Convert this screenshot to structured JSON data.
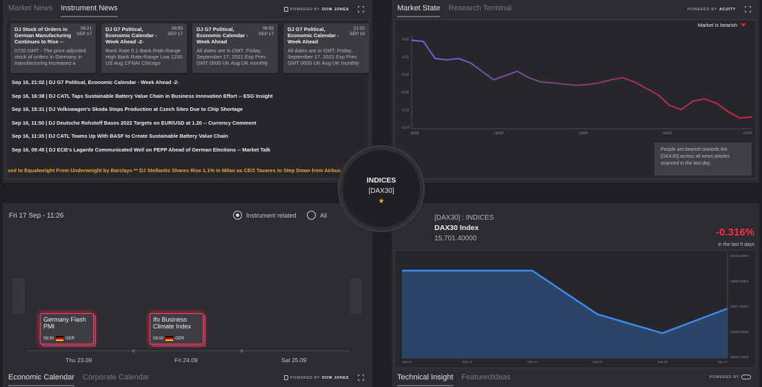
{
  "news_panel": {
    "tabs": [
      "Market News",
      "Instrument News"
    ],
    "active_tab": 1,
    "powered_by": "POWERED BY",
    "provider": "DOW JONES",
    "cards": [
      {
        "title": "DJ Stock of Orders in German Manufacturing Continues to Rise --",
        "time": "08:21",
        "date": "SEP 17",
        "body": "0720 GMT - The price adjusted stock of orders in Germany in manufacturing increased a"
      },
      {
        "title": "DJ G7 Political, Economic Calendar - Week Ahead -2-",
        "time": "06:55",
        "date": "SEP 17",
        "body": "Bank Rate 0.1 Bank Rate-Range High Bank Rate-Range Low 1230 US Aug CFNAI Chicago"
      },
      {
        "title": "DJ G7 Political, Economic Calendar - Week Ahead",
        "time": "06:55",
        "date": "SEP 17",
        "body": "All dates are in GMT. Friday, September 17, 2021 Exp Prev GMT 0600 UK Aug UK monthly"
      },
      {
        "title": "DJ G7 Political, Economic Calendar - Week Ahead",
        "time": "21:02",
        "date": "SEP 16",
        "body": "All dates are in GMT. Friday, September 17, 2021 Exp Prev GMT 0600 UK Aug UK monthly"
      }
    ],
    "headlines": [
      "Sep 16, 21:02 | DJ G7 Political, Economic Calendar - Week Ahead -2-",
      "Sep 16, 16:38 | DJ CATL Taps Sustainable Battery Value Chain in Business Innovation Effort -- ESG Insight",
      "Sep 16, 15:31 | DJ Volkswagen's Skoda Stops Production at Czech Sites Due to Chip Shortage",
      "Sep 16, 11:50 | DJ Deutsche Rohstoff Bases 2022 Targets on EUR/USD at 1.20 -- Currency Comment",
      "Sep 16, 11:35 | DJ CATL Teams Up With BASF to Create Sustainable Battery Value Chain",
      "Sep 16, 09:45 | DJ ECB's Lagarde Communicated Well on PEPP Ahead of German Elections -- Market Talk"
    ],
    "ticker": "sed to Equalweight From Underweight by Barclays ** DJ Stellantis Shares Rise 1.1% in Milan as CEO Tavares to Step Down from Airbus"
  },
  "market_panel": {
    "tabs": [
      "Market State",
      "Research Terminal"
    ],
    "active_tab": 0,
    "powered_by": "POWERED BY",
    "provider": "ACUITY",
    "status": "Market is bearish",
    "insight": "People are bearish towards the [DAX30] across all news articles scanned in the last day"
  },
  "hub": {
    "category": "INDICES",
    "symbol": "[DAX30]",
    "star": "★"
  },
  "calendar_panel": {
    "date": "Fri 17 Sep - 11:26",
    "filters": [
      "Instrument related",
      "All"
    ],
    "selected_filter": 0,
    "events": [
      {
        "title": "Germany Flash PMI",
        "time": "08:30",
        "country": "GER"
      },
      {
        "title": "Ifo Business Climate Index",
        "time": "09:00",
        "country": "GER"
      }
    ],
    "days": [
      "Thu 23.09",
      "Fri 24.09",
      "Sat 25.09"
    ],
    "tabs": [
      "Economic Calendar",
      "Corporate Calendar"
    ],
    "active_tab": 0,
    "powered_by": "POWERED BY",
    "provider": "DOW JONES"
  },
  "tech_panel": {
    "header": "[DAX30] : INDICES",
    "name": "DAX30 Index",
    "value": "15,701.40000",
    "change": "-0.316%",
    "period": "in the last 5 days",
    "tabs": [
      "Technical Insight",
      "FeaturedIdeas"
    ],
    "active_tab": 0,
    "powered_by": "POWERED BY"
  },
  "colors": {
    "bearish": "#e0203a",
    "ticker": "#f0a42e",
    "event_glow": "#ff3b62",
    "tech_line": "#3d8bf0",
    "tech_fill": "#2c4468",
    "change_negative": "#ff2d4a"
  },
  "chart_data": [
    {
      "type": "line",
      "id": "sentiment",
      "x_ticks": [
        "19/08",
        "25/08",
        "31/08",
        "06/09",
        "17/09"
      ],
      "y_ticks": [
        "0.06",
        "0.02",
        "-0.02",
        "-0.06",
        "-0.10",
        "-0.14"
      ],
      "ylim": [
        -0.14,
        0.08
      ],
      "x": [
        0,
        1,
        2,
        3,
        4,
        5,
        6,
        7,
        8,
        9,
        10,
        11,
        12,
        13,
        14,
        15,
        16,
        17,
        18,
        19,
        20,
        21,
        22,
        23,
        24,
        25,
        26,
        27,
        28,
        29
      ],
      "values": [
        0.068,
        0.065,
        0.025,
        0.022,
        0.025,
        0.015,
        -0.005,
        -0.025,
        -0.015,
        -0.005,
        -0.02,
        -0.03,
        -0.032,
        -0.035,
        -0.038,
        -0.036,
        -0.032,
        -0.025,
        -0.02,
        -0.03,
        -0.045,
        -0.06,
        -0.085,
        -0.095,
        -0.075,
        -0.07,
        -0.08,
        -0.1,
        -0.115,
        -0.112
      ]
    },
    {
      "type": "area",
      "id": "dax30",
      "x_ticks": [
        "Sep 12",
        "Sep 13",
        "Sep 14",
        "Sep 15",
        "Sep 16",
        "Sep 17"
      ],
      "y_ticks": [
        "15713.60000",
        "15680.00000",
        "15657.00000",
        "15630.00000",
        "15609.73333"
      ],
      "ylim": [
        15609.73333,
        15713.6
      ],
      "x": [
        0,
        1,
        2,
        3,
        4,
        5
      ],
      "values": [
        15702,
        15702,
        15702,
        15656,
        15636,
        15662
      ]
    }
  ]
}
